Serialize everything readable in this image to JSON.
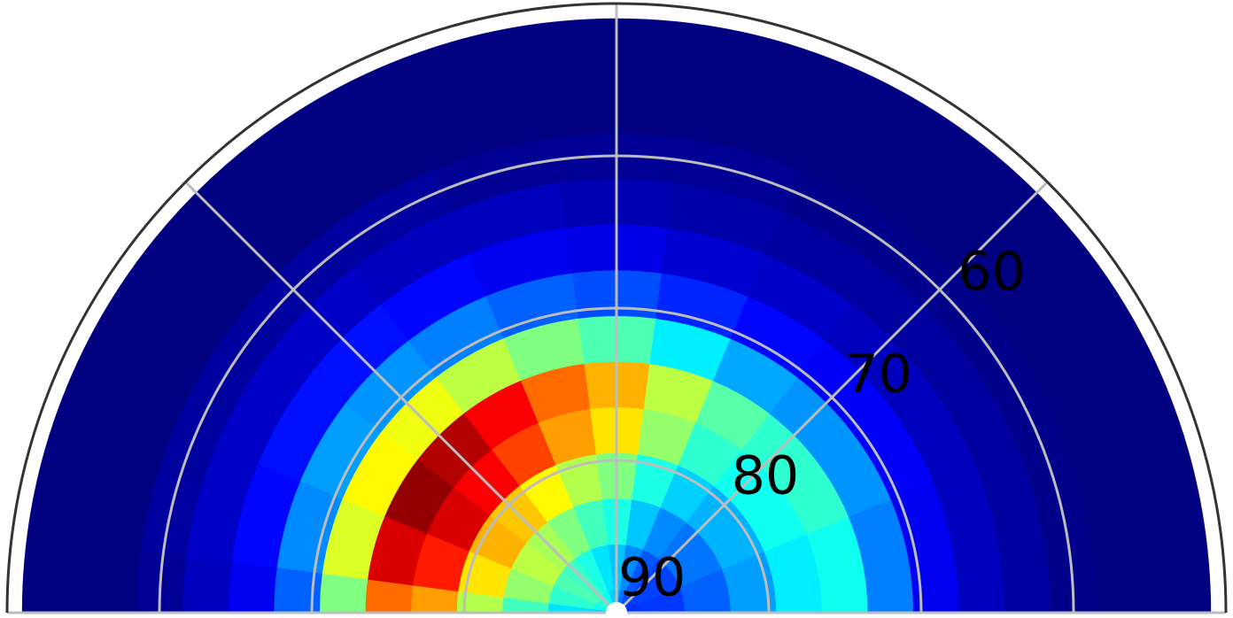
{
  "chart_data": {
    "type": "polar_contour",
    "theta": [
      0,
      15,
      30,
      45,
      60,
      75,
      90,
      105,
      120,
      135,
      150,
      165,
      180
    ],
    "r": [
      90,
      87,
      84,
      81,
      78,
      75,
      72,
      69,
      66,
      63,
      60,
      57,
      54,
      51
    ],
    "z": [
      [
        0.17,
        0.18,
        0.22,
        0.28,
        0.36,
        0.39,
        0.25,
        0.11,
        0.06,
        0.03,
        0.01,
        0,
        0,
        0
      ],
      [
        0.17,
        0.18,
        0.22,
        0.28,
        0.36,
        0.39,
        0.25,
        0.11,
        0.06,
        0.03,
        0.01,
        0,
        0,
        0
      ],
      [
        0.18,
        0.19,
        0.24,
        0.3,
        0.39,
        0.42,
        0.27,
        0.12,
        0.06,
        0.03,
        0.01,
        0,
        0,
        0
      ],
      [
        0.18,
        0.19,
        0.24,
        0.3,
        0.39,
        0.42,
        0.27,
        0.12,
        0.06,
        0.03,
        0.01,
        0,
        0,
        0
      ],
      [
        0.2,
        0.21,
        0.26,
        0.33,
        0.42,
        0.46,
        0.29,
        0.13,
        0.07,
        0.03,
        0.01,
        0,
        0,
        0
      ],
      [
        0.24,
        0.26,
        0.32,
        0.4,
        0.52,
        0.56,
        0.36,
        0.16,
        0.08,
        0.04,
        0.02,
        0,
        0,
        0
      ],
      [
        0.3,
        0.32,
        0.4,
        0.5,
        0.65,
        0.7,
        0.45,
        0.2,
        0.1,
        0.05,
        0.02,
        0,
        0,
        0
      ],
      [
        0.33,
        0.35,
        0.44,
        0.55,
        0.72,
        0.77,
        0.5,
        0.22,
        0.11,
        0.06,
        0.02,
        0,
        0,
        0
      ],
      [
        0.38,
        0.4,
        0.5,
        0.63,
        0.81,
        0.88,
        0.56,
        0.25,
        0.13,
        0.06,
        0.03,
        0,
        0,
        0
      ],
      [
        0.41,
        0.43,
        0.54,
        0.68,
        0.88,
        0.95,
        0.61,
        0.27,
        0.14,
        0.07,
        0.03,
        0,
        0,
        0
      ],
      [
        0.42,
        0.45,
        0.56,
        0.7,
        0.91,
        0.98,
        0.63,
        0.28,
        0.14,
        0.07,
        0.03,
        0,
        0,
        0
      ],
      [
        0.39,
        0.42,
        0.52,
        0.65,
        0.85,
        0.91,
        0.59,
        0.26,
        0.13,
        0.07,
        0.03,
        0,
        0,
        0
      ],
      [
        0.33,
        0.35,
        0.44,
        0.55,
        0.72,
        0.77,
        0.5,
        0.22,
        0.11,
        0.06,
        0.02,
        0,
        0,
        0
      ]
    ],
    "zlim": [
      0,
      1
    ],
    "colormap": "jet",
    "rlim": [
      90,
      50
    ],
    "rticks": [
      90,
      80,
      70,
      60
    ],
    "thetalim": [
      0,
      180
    ],
    "thetaticks": [
      0,
      45,
      90,
      135,
      180
    ],
    "grid": true
  }
}
